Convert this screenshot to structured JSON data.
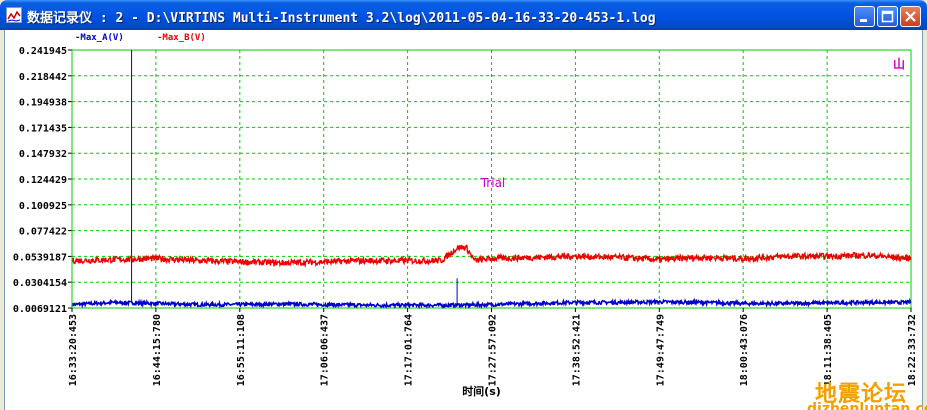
{
  "window": {
    "title": "数据记录仪 : 2 - D:\\VIRTINS Multi-Instrument 3.2\\log\\2011-05-04-16-33-20-453-1.log",
    "buttons": {
      "minimize": "minimize-icon",
      "maximize": "maximize-icon",
      "close": "close-icon"
    }
  },
  "chart_data": {
    "type": "line",
    "xlabel": "时间(s)",
    "ylabel": "",
    "annotation": "Trial",
    "corner_label": "山",
    "ylim": [
      0.0069121,
      0.241945
    ],
    "yticks": [
      "0.241945",
      "0.218442",
      "0.194938",
      "0.171435",
      "0.147932",
      "0.124429",
      "0.100925",
      "0.077422",
      "0.0539187",
      "0.0304154",
      "0.0069121"
    ],
    "xticks": [
      "16:33:20:453",
      "16:44:15:780",
      "16:55:11:108",
      "17:06:06:437",
      "17:17:01:764",
      "17:27:57:092",
      "17:38:52:421",
      "17:49:47:749",
      "18:00:43:076",
      "18:11:38:405",
      "18:22:33:732"
    ],
    "grid": true,
    "grid_color": "#00cc00",
    "series": [
      {
        "name": "Max_A(V)",
        "color": "#0000cc",
        "x_frac": [
          0.0,
          0.05,
          0.1,
          0.15,
          0.2,
          0.25,
          0.3,
          0.35,
          0.4,
          0.45,
          0.5,
          0.55,
          0.6,
          0.65,
          0.7,
          0.75,
          0.8,
          0.85,
          0.9,
          0.95,
          1.0
        ],
        "values": [
          0.01,
          0.012,
          0.011,
          0.01,
          0.01,
          0.0105,
          0.01,
          0.0095,
          0.0095,
          0.0095,
          0.01,
          0.011,
          0.012,
          0.012,
          0.0125,
          0.012,
          0.011,
          0.011,
          0.0115,
          0.012,
          0.012
        ],
        "spikes": [
          {
            "x_frac": 0.071,
            "value": 0.241945
          },
          {
            "x_frac": 0.459,
            "value": 0.034
          }
        ]
      },
      {
        "name": "Max_B(V)",
        "color": "#ee0000",
        "x_frac": [
          0.0,
          0.05,
          0.1,
          0.15,
          0.2,
          0.25,
          0.3,
          0.35,
          0.4,
          0.44,
          0.46,
          0.47,
          0.48,
          0.5,
          0.55,
          0.6,
          0.65,
          0.7,
          0.75,
          0.8,
          0.85,
          0.9,
          0.95,
          0.98,
          1.0
        ],
        "values": [
          0.05,
          0.051,
          0.052,
          0.05,
          0.049,
          0.048,
          0.049,
          0.05,
          0.05,
          0.05,
          0.062,
          0.062,
          0.05,
          0.052,
          0.053,
          0.054,
          0.053,
          0.051,
          0.053,
          0.052,
          0.054,
          0.054,
          0.055,
          0.053,
          0.052
        ]
      }
    ]
  },
  "watermark": {
    "text": "地震论坛",
    "url": "dizhenluntan.com"
  }
}
